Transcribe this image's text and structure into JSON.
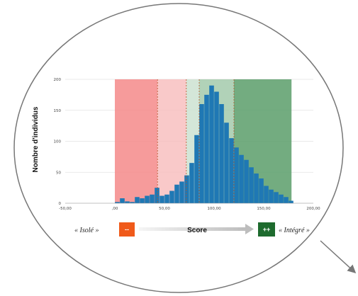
{
  "chart_data": {
    "type": "bar",
    "xlabel": "Score",
    "ylabel": "Nombre d'individus",
    "xlim": [
      -50,
      200
    ],
    "ylim": [
      0,
      200
    ],
    "x_ticks": [
      "-50,00",
      ",00",
      "50,00",
      "100,00",
      "150,00",
      "200,00"
    ],
    "y_ticks": [
      "0",
      "50",
      "100",
      "150",
      "200"
    ],
    "grid": "horizontal",
    "bin_width": 5,
    "bins_start": [
      0,
      5,
      10,
      15,
      20,
      25,
      30,
      35,
      40,
      45,
      50,
      55,
      60,
      65,
      70,
      75,
      80,
      85,
      90,
      95,
      100,
      105,
      110,
      115,
      120,
      125,
      130,
      135,
      140,
      145,
      150,
      155,
      160,
      165,
      170,
      175
    ],
    "values": [
      2,
      8,
      3,
      2,
      10,
      8,
      12,
      14,
      25,
      12,
      14,
      20,
      30,
      35,
      45,
      65,
      110,
      160,
      175,
      190,
      180,
      160,
      130,
      105,
      90,
      78,
      70,
      58,
      48,
      40,
      28,
      22,
      18,
      14,
      10,
      4
    ],
    "zones": [
      {
        "from": 0,
        "to": 43,
        "color": "#f48a8a",
        "opacity": 0.85
      },
      {
        "from": 43,
        "to": 72,
        "color": "#f8bcbc",
        "opacity": 0.8
      },
      {
        "from": 72,
        "to": 85,
        "color": "#cfe3d4",
        "opacity": 0.9
      },
      {
        "from": 85,
        "to": 120,
        "color": "#9ec7a6",
        "opacity": 0.8
      },
      {
        "from": 120,
        "to": 178,
        "color": "#5a9e6a",
        "opacity": 0.85
      }
    ],
    "dashed_lines": [
      43,
      72,
      85,
      120
    ],
    "bar_color": "#1f78b4"
  },
  "legend": {
    "left_label": "« Isolé »",
    "left_badge": "--",
    "left_color": "#f05a1a",
    "score_label": "Score",
    "right_badge": "++",
    "right_color": "#1e6b2e",
    "right_label": "« Intégré »"
  }
}
